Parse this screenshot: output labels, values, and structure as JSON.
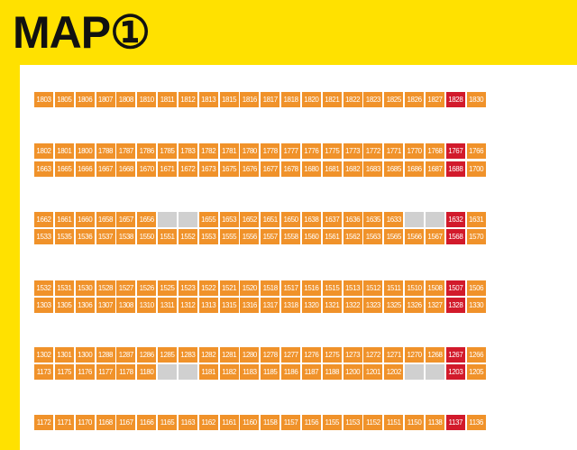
{
  "title": "MAP①",
  "colors": {
    "background": "#ffe100",
    "stall": "#f0922a",
    "highlight": "#d21a2b",
    "empty": "#d0d0d0"
  },
  "rows": [
    [
      "1803",
      "1805",
      "1806",
      "1807",
      "1808",
      "1810",
      "1811",
      "1812",
      "1813",
      "1815",
      "1816",
      "1817",
      "1818",
      "1820",
      "1821",
      "1822",
      "1823",
      "1825",
      "1826",
      "1827",
      {
        "n": "1828",
        "red": true
      },
      "1830"
    ],
    [
      "1802",
      "1801",
      "1800",
      "1788",
      "1787",
      "1786",
      "1785",
      "1783",
      "1782",
      "1781",
      "1780",
      "1778",
      "1777",
      "1776",
      "1775",
      "1773",
      "1772",
      "1771",
      "1770",
      "1768",
      {
        "n": "1767",
        "red": true
      },
      "1766"
    ],
    [
      "1663",
      "1665",
      "1666",
      "1667",
      "1668",
      "1670",
      "1671",
      "1672",
      "1673",
      "1675",
      "1676",
      "1677",
      "1678",
      "1680",
      "1681",
      "1682",
      "1683",
      "1685",
      "1686",
      "1687",
      {
        "n": "1688",
        "red": true
      },
      "1700"
    ],
    [
      "1662",
      "1661",
      "1660",
      "1658",
      "1657",
      "1656",
      null,
      null,
      "1655",
      "1653",
      "1652",
      "1651",
      "1650",
      "1638",
      "1637",
      "1636",
      "1635",
      "1633",
      null,
      null,
      {
        "n": "1632",
        "red": true
      },
      "1631"
    ],
    [
      "1533",
      "1535",
      "1536",
      "1537",
      "1538",
      "1550",
      "1551",
      "1552",
      "1553",
      "1555",
      "1556",
      "1557",
      "1558",
      "1560",
      "1561",
      "1562",
      "1563",
      "1565",
      "1566",
      "1567",
      {
        "n": "1568",
        "red": true
      },
      "1570"
    ],
    [
      "1532",
      "1531",
      "1530",
      "1528",
      "1527",
      "1526",
      "1525",
      "1523",
      "1522",
      "1521",
      "1520",
      "1518",
      "1517",
      "1516",
      "1515",
      "1513",
      "1512",
      "1511",
      "1510",
      "1508",
      {
        "n": "1507",
        "red": true
      },
      "1506"
    ],
    [
      "1303",
      "1305",
      "1306",
      "1307",
      "1308",
      "1310",
      "1311",
      "1312",
      "1313",
      "1315",
      "1316",
      "1317",
      "1318",
      "1320",
      "1321",
      "1322",
      "1323",
      "1325",
      "1326",
      "1327",
      {
        "n": "1328",
        "red": true
      },
      "1330"
    ],
    [
      "1302",
      "1301",
      "1300",
      "1288",
      "1287",
      "1286",
      "1285",
      "1283",
      "1282",
      "1281",
      "1280",
      "1278",
      "1277",
      "1276",
      "1275",
      "1273",
      "1272",
      "1271",
      "1270",
      "1268",
      {
        "n": "1267",
        "red": true
      },
      "1266"
    ],
    [
      "1173",
      "1175",
      "1176",
      "1177",
      "1178",
      "1180",
      null,
      null,
      "1181",
      "1182",
      "1183",
      "1185",
      "1186",
      "1187",
      "1188",
      "1200",
      "1201",
      "1202",
      null,
      null,
      {
        "n": "1203",
        "red": true
      },
      "1205"
    ],
    [
      "1172",
      "1171",
      "1170",
      "1168",
      "1167",
      "1166",
      "1165",
      "1163",
      "1162",
      "1161",
      "1160",
      "1158",
      "1157",
      "1156",
      "1155",
      "1153",
      "1152",
      "1151",
      "1150",
      "1138",
      {
        "n": "1137",
        "red": true
      },
      "1136"
    ]
  ]
}
